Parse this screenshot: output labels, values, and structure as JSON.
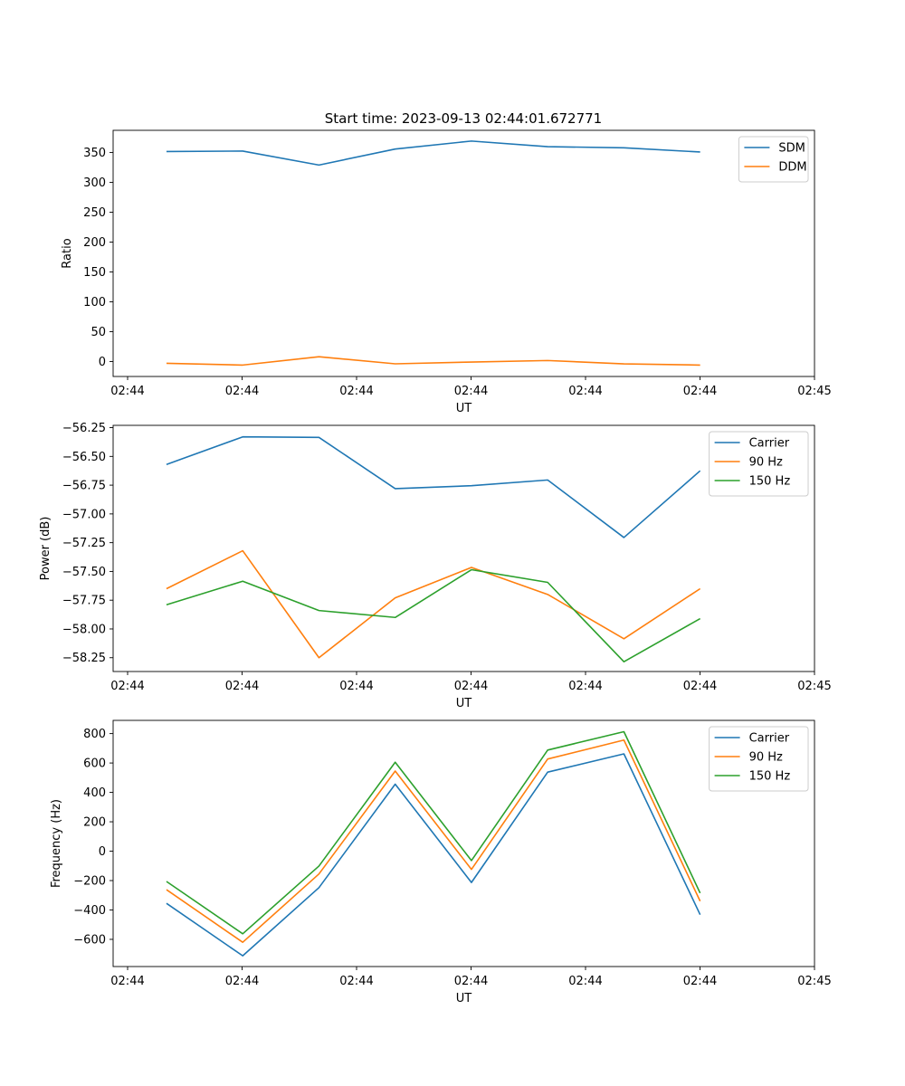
{
  "title": "Start time: 2023-09-13 02:44:01.672771",
  "colors": {
    "blue": "#1f77b4",
    "orange": "#ff7f0e",
    "green": "#2ca02c"
  },
  "chart_data": [
    {
      "type": "line",
      "xlabel": "UT",
      "ylabel": "Ratio",
      "x_tick_labels": [
        "02:44",
        "02:44",
        "02:44",
        "02:44",
        "02:44",
        "02:44",
        "02:45"
      ],
      "xlim": [
        -0.7,
        8.5
      ],
      "ylim": [
        -25,
        387
      ],
      "y_ticks": [
        0,
        50,
        100,
        150,
        200,
        250,
        300,
        350
      ],
      "y_tick_labels": [
        "0",
        "50",
        "100",
        "150",
        "200",
        "250",
        "300",
        "350"
      ],
      "legend_position": "top-right",
      "x": [
        0.0,
        1.0,
        2.0,
        3.0,
        4.0,
        5.0,
        6.0,
        7.0
      ],
      "series": [
        {
          "name": "SDM",
          "color": "#1f77b4",
          "values": [
            351.5,
            352.3,
            328.9,
            355.7,
            369.0,
            359.6,
            357.8,
            350.7
          ]
        },
        {
          "name": "DDM",
          "color": "#ff7f0e",
          "values": [
            -3.0,
            -5.9,
            8.1,
            -3.8,
            -0.8,
            1.7,
            -3.9,
            -5.9
          ]
        }
      ]
    },
    {
      "type": "line",
      "xlabel": "UT",
      "ylabel": "Power (dB)",
      "x_tick_labels": [
        "02:44",
        "02:44",
        "02:44",
        "02:44",
        "02:44",
        "02:44",
        "02:45"
      ],
      "xlim": [
        -0.7,
        8.5
      ],
      "ylim": [
        -58.37,
        -56.23
      ],
      "y_ticks": [
        -58.25,
        -58.0,
        -57.75,
        -57.5,
        -57.25,
        -57.0,
        -56.75,
        -56.5,
        -56.25
      ],
      "y_tick_labels": [
        "−58.25",
        "−58.00",
        "−57.75",
        "−57.50",
        "−57.25",
        "−57.00",
        "−56.75",
        "−56.50",
        "−56.25"
      ],
      "legend_position": "top-right",
      "x": [
        0.0,
        1.0,
        2.0,
        3.0,
        4.0,
        5.0,
        6.0,
        7.0
      ],
      "series": [
        {
          "name": "Carrier",
          "color": "#1f77b4",
          "values": [
            -56.57,
            -56.33,
            -56.335,
            -56.78,
            -56.755,
            -56.705,
            -57.205,
            -56.625
          ]
        },
        {
          "name": "90 Hz",
          "color": "#ff7f0e",
          "values": [
            -57.65,
            -57.32,
            -58.25,
            -57.73,
            -57.465,
            -57.7,
            -58.085,
            -57.65
          ]
        },
        {
          "name": "150 Hz",
          "color": "#2ca02c",
          "values": [
            -57.79,
            -57.585,
            -57.84,
            -57.9,
            -57.485,
            -57.595,
            -58.285,
            -57.91
          ]
        }
      ]
    },
    {
      "type": "line",
      "xlabel": "UT",
      "ylabel": "Frequency (Hz)",
      "x_tick_labels": [
        "02:44",
        "02:44",
        "02:44",
        "02:44",
        "02:44",
        "02:44",
        "02:45"
      ],
      "xlim": [
        -0.7,
        8.5
      ],
      "ylim": [
        -785,
        890
      ],
      "y_ticks": [
        -600,
        -400,
        -200,
        0,
        200,
        400,
        600,
        800
      ],
      "y_tick_labels": [
        "−600",
        "−400",
        "−200",
        "0",
        "200",
        "400",
        "600",
        "800"
      ],
      "legend_position": "top-right",
      "x": [
        0.0,
        1.0,
        2.0,
        3.0,
        4.0,
        5.0,
        6.0,
        7.0
      ],
      "series": [
        {
          "name": "Carrier",
          "color": "#1f77b4",
          "values": [
            -355,
            -712,
            -248,
            456,
            -213,
            538,
            662,
            -432
          ]
        },
        {
          "name": "90 Hz",
          "color": "#ff7f0e",
          "values": [
            -262,
            -620,
            -155,
            545,
            -124,
            627,
            756,
            -340
          ]
        },
        {
          "name": "150 Hz",
          "color": "#2ca02c",
          "values": [
            -206,
            -562,
            -101,
            605,
            -64,
            688,
            813,
            -285
          ]
        }
      ]
    }
  ]
}
